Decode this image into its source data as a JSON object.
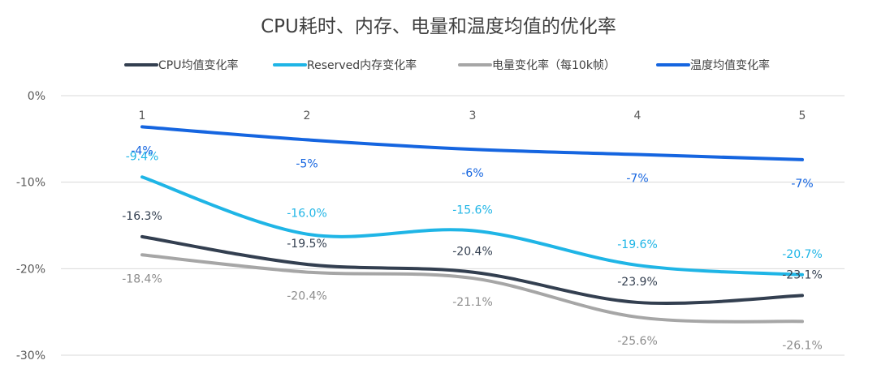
{
  "chart_data": {
    "type": "line",
    "title": "CPU耗时、内存、电量和温度均值的优化率",
    "xlabel": "",
    "ylabel": "",
    "categories": [
      "1",
      "2",
      "3",
      "4",
      "5"
    ],
    "ylim": [
      -30,
      0
    ],
    "yticks": [
      0,
      -10,
      -20,
      -30
    ],
    "ytick_labels": [
      "0%",
      "-10%",
      "-20%",
      "-30%"
    ],
    "grid": true,
    "legend_position": "top",
    "series": [
      {
        "name": "CPU均值变化率",
        "color": "#333f50",
        "values": [
          -16.3,
          -19.5,
          -20.4,
          -23.9,
          -23.1
        ],
        "labels": [
          "-16.3%",
          "-19.5%",
          "-20.4%",
          "-23.9%",
          "-23.1%"
        ],
        "label_position": "above"
      },
      {
        "name": "Reserved内存变化率",
        "color": "#1fb5e6",
        "values": [
          -9.4,
          -16.0,
          -15.6,
          -19.6,
          -20.7
        ],
        "labels": [
          "-9.4%",
          "-16.0%",
          "-15.6%",
          "-19.6%",
          "-20.7%"
        ],
        "label_position": "above"
      },
      {
        "name": "电量变化率（每10k帧）",
        "color": "#a6a6a6",
        "values": [
          -18.4,
          -20.4,
          -21.1,
          -25.6,
          -26.1
        ],
        "labels": [
          "-18.4%",
          "-20.4%",
          "-21.1%",
          "-25.6%",
          "-26.1%"
        ],
        "label_position": "below"
      },
      {
        "name": "温度均值变化率",
        "color": "#1565e0",
        "values": [
          -3.6,
          -5.1,
          -6.2,
          -6.8,
          -7.4
        ],
        "labels": [
          "-4%",
          "-5%",
          "-6%",
          "-7%",
          "-7%"
        ],
        "label_position": "below"
      }
    ]
  }
}
